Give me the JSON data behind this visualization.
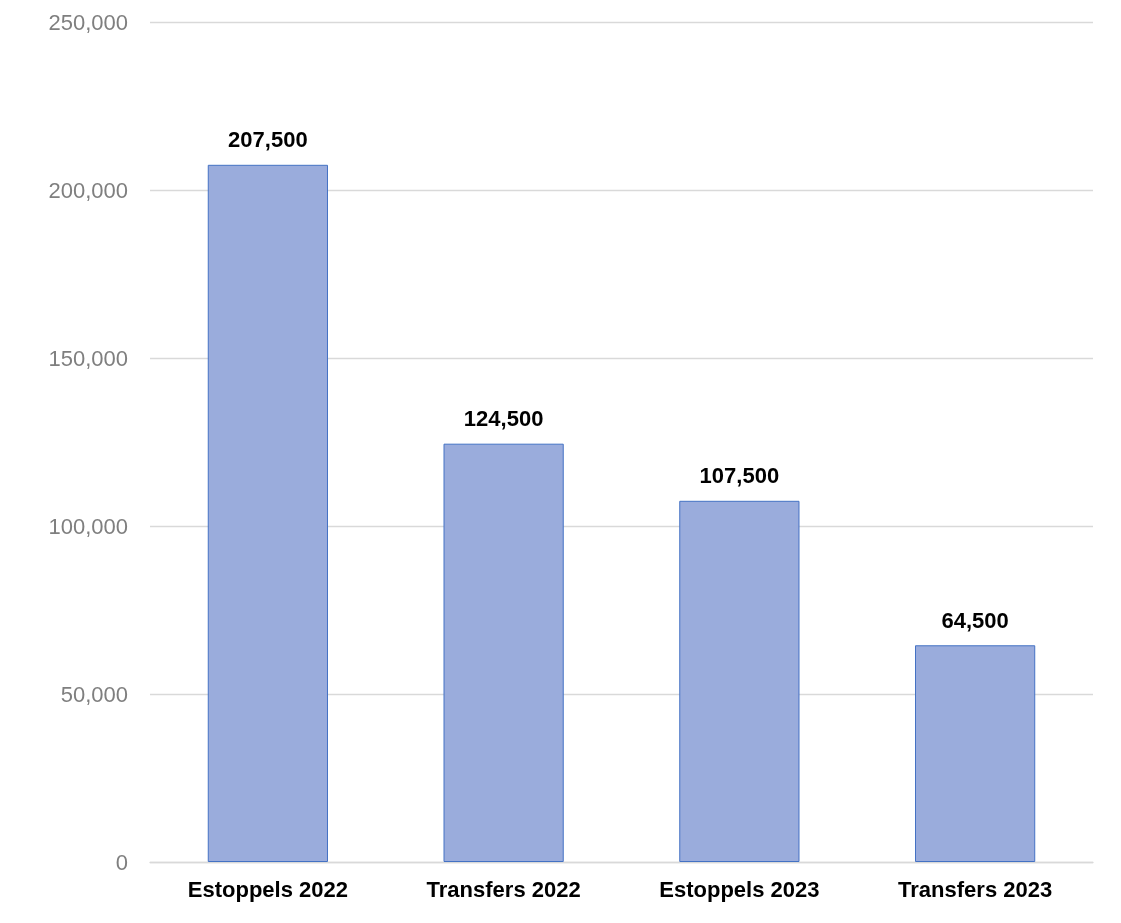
{
  "chart_data": {
    "type": "bar",
    "categories": [
      "Estoppels 2022",
      "Transfers 2022",
      "Estoppels 2023",
      "Transfers 2023"
    ],
    "values": [
      207500,
      124500,
      107500,
      64500
    ],
    "value_labels": [
      "207,500",
      "124,500",
      "107,500",
      "64,500"
    ],
    "color": "#9aacdc",
    "ylim": [
      0,
      250000
    ],
    "yticks": [
      0,
      {
        "value": 50000,
        "label": "50,000"
      },
      {
        "value": 100000,
        "label": "100,000"
      },
      {
        "value": 150000,
        "label": "150,000"
      },
      {
        "value": 200000,
        "label": "200,000"
      },
      {
        "value": 250000,
        "label": "250,000"
      }
    ],
    "grid": "y"
  }
}
